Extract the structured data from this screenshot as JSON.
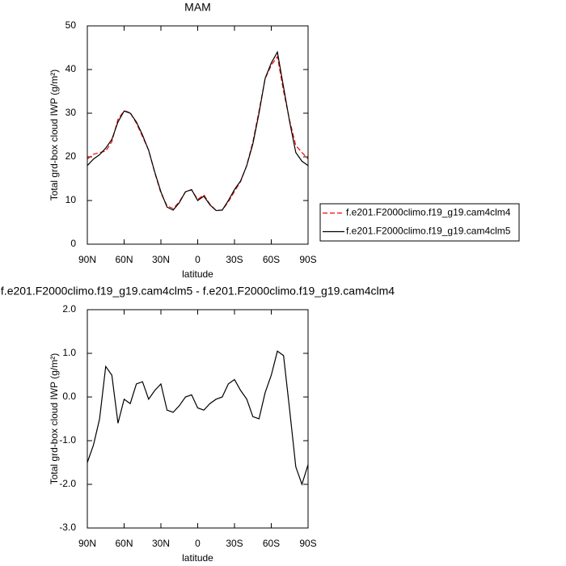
{
  "chart_data": [
    {
      "type": "line",
      "title": "MAM",
      "xlabel": "latitude",
      "ylabel": "Total grd-box cloud IWP (g/m²)",
      "x": [
        90,
        85,
        80,
        75,
        70,
        65,
        60,
        55,
        50,
        45,
        40,
        35,
        30,
        25,
        20,
        15,
        10,
        5,
        0,
        -5,
        -10,
        -15,
        -20,
        -25,
        -30,
        -35,
        -40,
        -45,
        -50,
        -55,
        -60,
        -65,
        -70,
        -75,
        -80,
        -85,
        -90
      ],
      "series": [
        {
          "name": "f.e201.F2000climo.f19_g19.cam4clm4",
          "color": "#ff0000",
          "line_style": "dashed",
          "values": [
            19.5,
            20.6,
            21,
            21.3,
            23.5,
            28.6,
            30.55,
            30.15,
            27.7,
            24.65,
            21.55,
            16.35,
            11.7,
            8.8,
            8.15,
            9.7,
            12,
            12.45,
            10.25,
            11.3,
            9.15,
            7.75,
            7.8,
            9.7,
            12.1,
            14.35,
            18.05,
            23.45,
            30.5,
            37.9,
            41,
            42.95,
            35.05,
            28.3,
            22.6,
            21,
            19.55
          ]
        },
        {
          "name": "f.e201.F2000climo.f19_g19.cam4clm5",
          "color": "#000000",
          "line_style": "solid",
          "values": [
            18,
            19.5,
            20.5,
            22,
            24,
            28,
            30.5,
            30,
            28,
            25,
            21.5,
            16.5,
            12,
            8.5,
            7.8,
            9.5,
            12,
            12.5,
            10,
            11,
            9,
            7.7,
            7.8,
            10,
            12.5,
            14.5,
            18,
            23,
            30,
            38,
            41.5,
            44,
            36,
            28,
            21,
            19,
            18
          ]
        }
      ],
      "xlim": [
        90,
        -90
      ],
      "xticks": [
        {
          "value": 90,
          "label": "90N"
        },
        {
          "value": 60,
          "label": "60N"
        },
        {
          "value": 30,
          "label": "30N"
        },
        0,
        {
          "value": -30,
          "label": "30S"
        },
        {
          "value": -60,
          "label": "60S"
        },
        {
          "value": -90,
          "label": "90S"
        }
      ],
      "ylim": [
        0,
        50
      ],
      "yticks": [
        0,
        10,
        20,
        30,
        40,
        50
      ],
      "legend": "right"
    },
    {
      "type": "line",
      "title": "f.e201.F2000climo.f19_g19.cam4clm5 - f.e201.F2000climo.f19_g19.cam4clm4",
      "xlabel": "latitude",
      "ylabel": "Total grd-box cloud IWP (g/m²)",
      "x": [
        90,
        85,
        80,
        75,
        70,
        65,
        60,
        55,
        50,
        45,
        40,
        35,
        30,
        25,
        20,
        15,
        10,
        5,
        0,
        -5,
        -10,
        -15,
        -20,
        -25,
        -30,
        -35,
        -40,
        -45,
        -50,
        -55,
        -60,
        -65,
        -70,
        -75,
        -80,
        -85,
        -90
      ],
      "series": [
        {
          "color": "#000000",
          "line_style": "solid",
          "values": [
            -1.5,
            -1.1,
            -0.5,
            0.7,
            0.5,
            -0.6,
            -0.05,
            -0.15,
            0.3,
            0.35,
            -0.05,
            0.15,
            0.3,
            -0.3,
            -0.35,
            -0.2,
            0,
            0.05,
            -0.25,
            -0.3,
            -0.15,
            -0.05,
            0,
            0.3,
            0.4,
            0.15,
            -0.05,
            -0.45,
            -0.5,
            0.1,
            0.5,
            1.05,
            0.95,
            -0.3,
            -1.6,
            -2,
            -1.55
          ]
        }
      ],
      "xlim": [
        90,
        -90
      ],
      "xticks": [
        {
          "value": 90,
          "label": "90N"
        },
        {
          "value": 60,
          "label": "60N"
        },
        {
          "value": 30,
          "label": "30N"
        },
        0,
        {
          "value": -30,
          "label": "30S"
        },
        {
          "value": -60,
          "label": "60S"
        },
        {
          "value": -90,
          "label": "90S"
        }
      ],
      "ylim": [
        -3,
        2
      ],
      "yticks": [
        {
          "value": -3,
          "label": "-3.0"
        },
        {
          "value": -2,
          "label": "-2.0"
        },
        {
          "value": -1,
          "label": "-1.0"
        },
        {
          "value": 0,
          "label": "0.0"
        },
        {
          "value": 1,
          "label": "1.0"
        },
        {
          "value": 2,
          "label": "2.0"
        }
      ]
    }
  ]
}
